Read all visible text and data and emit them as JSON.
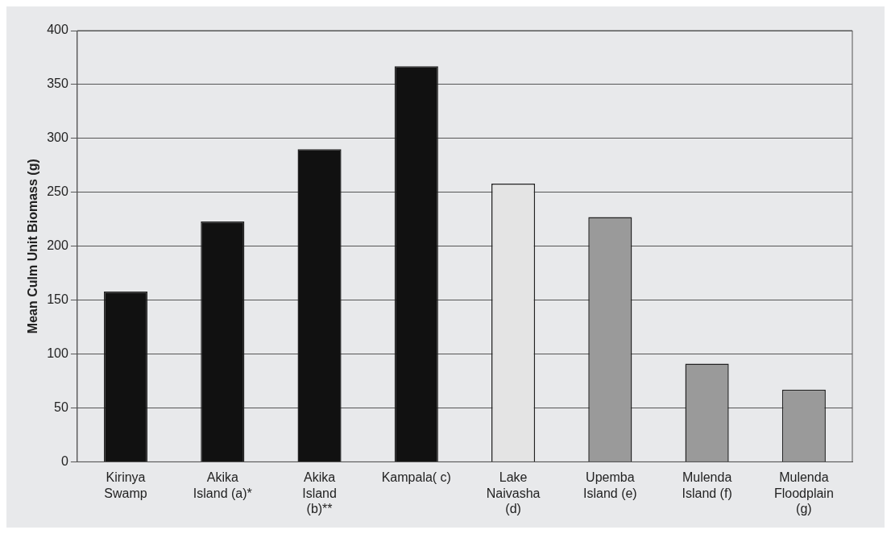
{
  "chart_data": {
    "type": "bar",
    "ylabel": "Mean Culm Unit Biomass (g)",
    "categories": [
      "Kirinya Swamp",
      "Akika Island (a)*",
      "Akika Island (b)**",
      "Kampala( c)",
      "Lake Naivasha (d)",
      "Upemba Island (e)",
      "Mulenda Island (f)",
      "Mulenda Floodplain (g)"
    ],
    "values": [
      158,
      223,
      290,
      367,
      258,
      227,
      91,
      67
    ],
    "colors": [
      "#111111",
      "#111111",
      "#111111",
      "#111111",
      "#e4e4e4",
      "#9a9a9a",
      "#9a9a9a",
      "#9a9a9a"
    ],
    "ylim": [
      0,
      400
    ],
    "yticks": [
      0,
      50,
      100,
      150,
      200,
      250,
      300,
      350,
      400
    ],
    "grid": "y",
    "legend": false
  }
}
